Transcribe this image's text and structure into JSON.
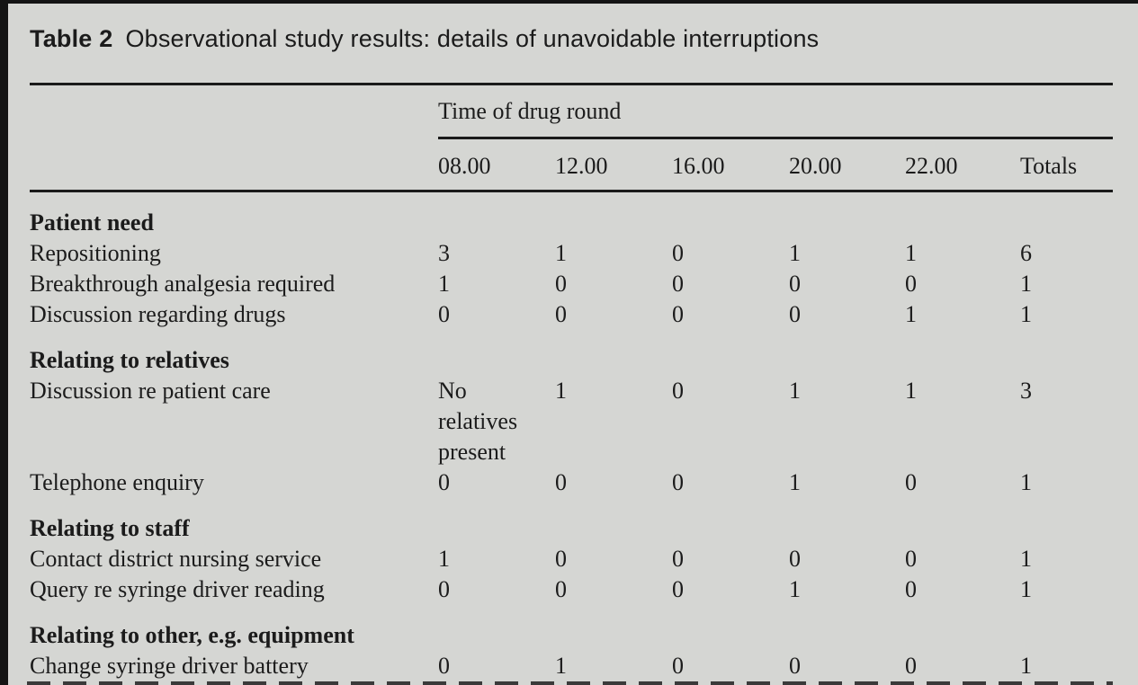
{
  "page": {
    "background_color": "#d5d6d3",
    "text_color": "#1b1b1b",
    "rule_color": "#1a1a1a"
  },
  "caption": {
    "label": "Table 2",
    "title": "Observational study results: details of unavoidable interruptions"
  },
  "table": {
    "group_header": "Time of drug round",
    "columns": [
      "08.00",
      "12.00",
      "16.00",
      "20.00",
      "22.00",
      "Totals"
    ],
    "sections": [
      {
        "title": "Patient need",
        "rows": [
          {
            "label": "Repositioning",
            "values": [
              "3",
              "1",
              "0",
              "1",
              "1",
              "6"
            ]
          },
          {
            "label": "Breakthrough analgesia required",
            "values": [
              "1",
              "0",
              "0",
              "0",
              "0",
              "1"
            ]
          },
          {
            "label": "Discussion regarding drugs",
            "values": [
              "0",
              "0",
              "0",
              "0",
              "1",
              "1"
            ]
          }
        ]
      },
      {
        "title": "Relating to relatives",
        "rows": [
          {
            "label": "Discussion re patient care",
            "values": [
              "No relatives present",
              "1",
              "0",
              "1",
              "1",
              "3"
            ]
          },
          {
            "label": "Telephone enquiry",
            "values": [
              "0",
              "0",
              "0",
              "1",
              "0",
              "1"
            ]
          }
        ]
      },
      {
        "title": "Relating to staff",
        "rows": [
          {
            "label": "Contact district nursing service",
            "values": [
              "1",
              "0",
              "0",
              "0",
              "0",
              "1"
            ]
          },
          {
            "label": "Query re syringe driver reading",
            "values": [
              "0",
              "0",
              "0",
              "1",
              "0",
              "1"
            ]
          }
        ]
      },
      {
        "title": "Relating to other, e.g. equipment",
        "rows": [
          {
            "label": "Change syringe driver battery",
            "values": [
              "0",
              "1",
              "0",
              "0",
              "0",
              "1"
            ]
          }
        ]
      }
    ]
  }
}
